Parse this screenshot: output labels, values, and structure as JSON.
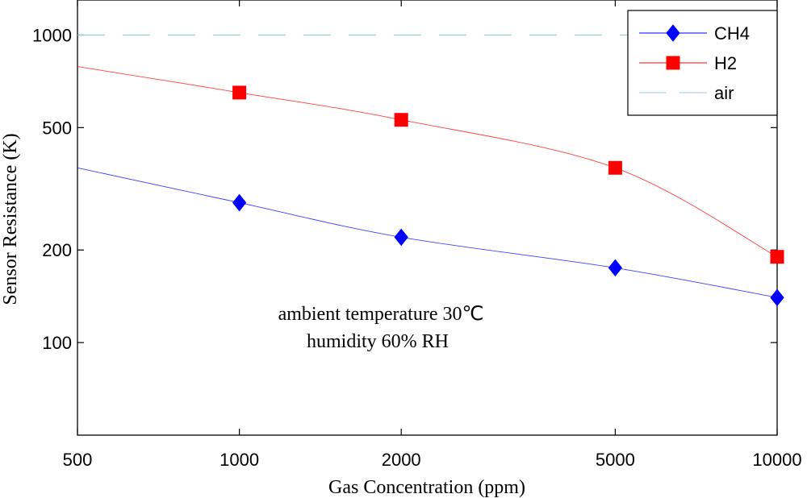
{
  "chart_data": {
    "type": "line",
    "x_scale": "log",
    "y_scale": "log",
    "xlim": [
      500,
      10000
    ],
    "ylim": [
      50,
      1300
    ],
    "x_ticks": [
      500,
      1000,
      2000,
      5000,
      10000
    ],
    "x_tick_labels": [
      "500",
      "1000",
      "2000",
      "5000",
      "10000"
    ],
    "y_ticks": [
      100,
      200,
      500,
      1000
    ],
    "y_tick_labels": [
      "100",
      "200",
      "500",
      "1000"
    ],
    "xlabel": "Gas Concentration (ppm)",
    "ylabel": "Sensor Resistance (K)",
    "annotation": [
      "ambient temperature 30℃",
      "humidity 60% RH"
    ],
    "legend_position": "top-right",
    "series": [
      {
        "name": "CH4",
        "color": "#0000ff",
        "marker": "diamond",
        "line_style": "solid",
        "x": [
          1000,
          2000,
          5000,
          10000
        ],
        "values": [
          285,
          220,
          175,
          140
        ],
        "curve_start": {
          "x": 500,
          "y": 370
        }
      },
      {
        "name": "H2",
        "color": "#ff0000",
        "marker": "square",
        "line_style": "solid",
        "x": [
          1000,
          2000,
          5000,
          10000
        ],
        "values": [
          650,
          530,
          370,
          190
        ],
        "curve_start": {
          "x": 500,
          "y": 790
        }
      },
      {
        "name": "air",
        "color": "#9ecfcf",
        "marker": "none",
        "line_style": "dashed",
        "x": [
          500,
          10000
        ],
        "values": [
          1000,
          1000
        ]
      }
    ]
  }
}
